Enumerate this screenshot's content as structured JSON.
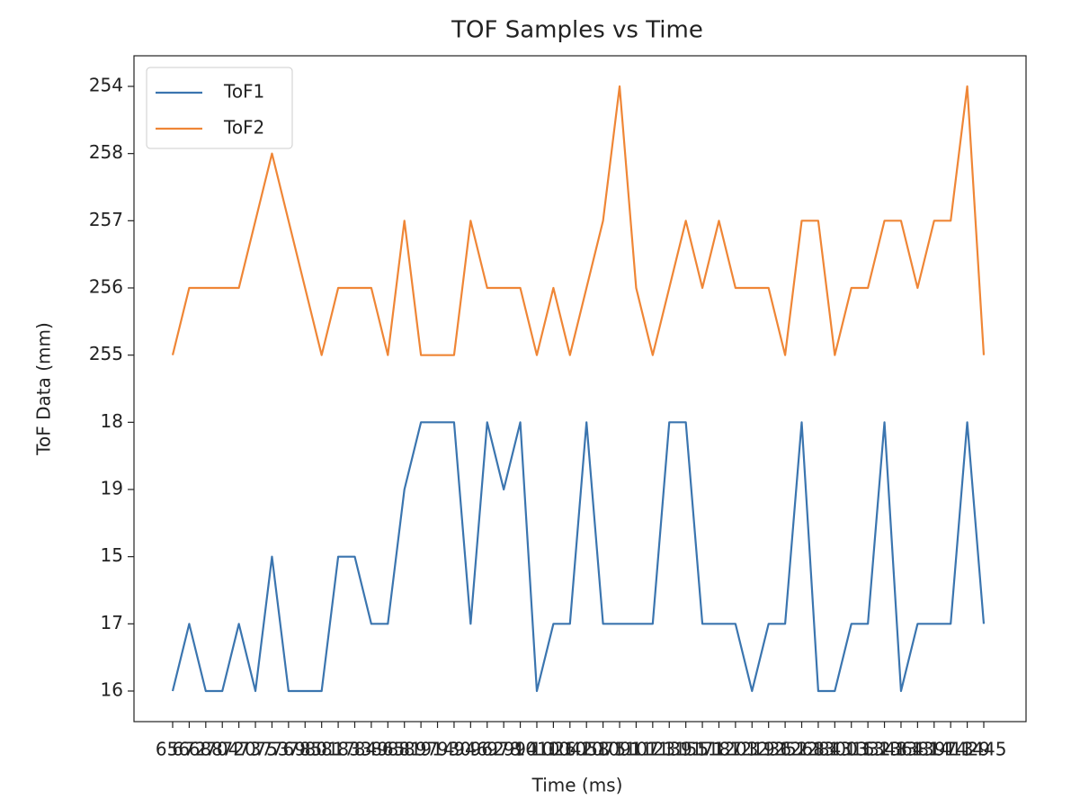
{
  "chart_data": {
    "type": "line",
    "title": "TOF Samples vs Time",
    "xlabel": "Time (ms)",
    "ylabel": "ToF Data (mm)",
    "x": [
      "656",
      "672",
      "688",
      "704",
      "720",
      "737",
      "753",
      "769",
      "785",
      "801",
      "817",
      "833",
      "849",
      "865",
      "881",
      "897",
      "914",
      "930",
      "946",
      "962",
      "978",
      "994",
      "1010",
      "1026",
      "1042",
      "1058",
      "1075",
      "1091",
      "1107",
      "1123",
      "1139",
      "1155",
      "1171",
      "1187",
      "1203",
      "1219",
      "1236",
      "1252",
      "1268",
      "1284",
      "1300",
      "1316",
      "1332",
      "1348",
      "1364",
      "1381",
      "1397",
      "1413",
      "1429",
      "1445"
    ],
    "ycategories": [
      16,
      17,
      15,
      19,
      18,
      255,
      256,
      257,
      258,
      254
    ],
    "legend": "upper left",
    "series": [
      {
        "name": "ToF1",
        "color": "#3b75af",
        "values": [
          16,
          17,
          16,
          16,
          17,
          16,
          15,
          16,
          16,
          16,
          15,
          15,
          17,
          17,
          19,
          18,
          18,
          18,
          17,
          18,
          19,
          18,
          16,
          17,
          17,
          18,
          17,
          17,
          17,
          17,
          18,
          18,
          17,
          17,
          17,
          16,
          17,
          17,
          18,
          16,
          16,
          17,
          17,
          18,
          16,
          17,
          17,
          17,
          18,
          17
        ]
      },
      {
        "name": "ToF2",
        "color": "#ef8636",
        "values": [
          255,
          256,
          256,
          256,
          256,
          257,
          258,
          257,
          256,
          255,
          256,
          256,
          256,
          255,
          257,
          255,
          255,
          255,
          257,
          256,
          256,
          256,
          255,
          256,
          255,
          256,
          257,
          254,
          256,
          255,
          256,
          257,
          256,
          257,
          256,
          256,
          256,
          255,
          257,
          257,
          255,
          256,
          256,
          257,
          257,
          256,
          257,
          257,
          254,
          255
        ]
      }
    ]
  }
}
